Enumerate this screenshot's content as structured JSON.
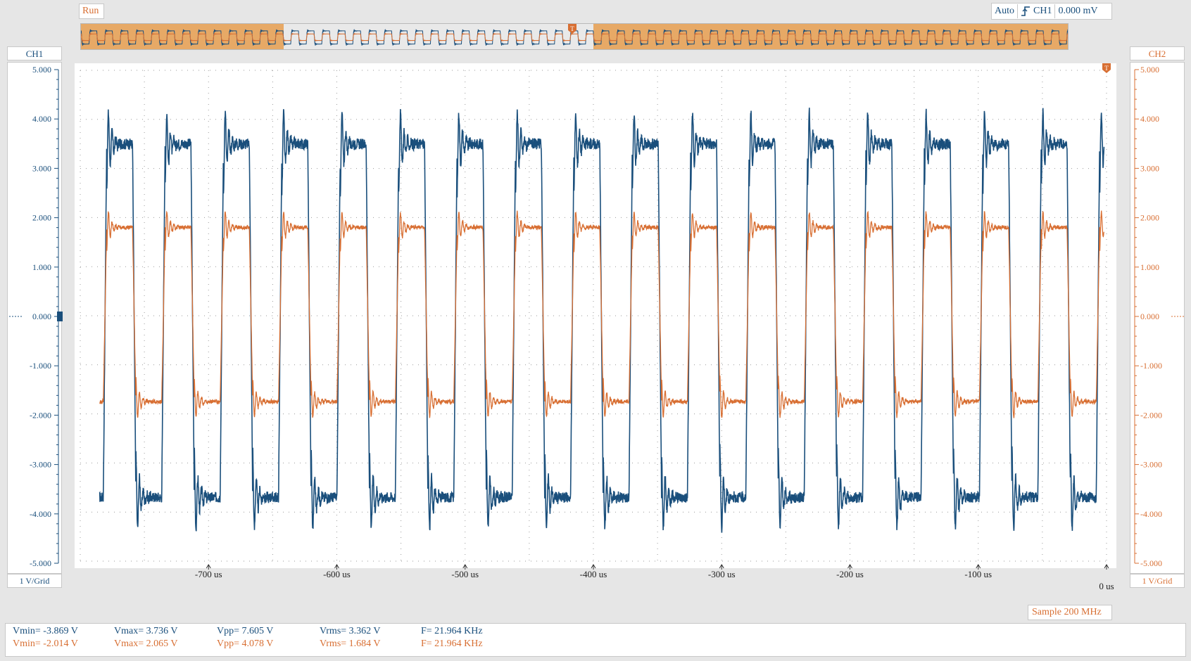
{
  "status": {
    "run": "Run"
  },
  "trigger": {
    "mode": "Auto",
    "source": "CH1",
    "level": "0.000 mV",
    "marker": "T"
  },
  "channels": {
    "ch1": {
      "label": "CH1",
      "scale": "1 V/Grid",
      "color": "#1a4f7c"
    },
    "ch2": {
      "label": "CH2",
      "scale": "1 V/Grid",
      "color": "#d86f33"
    }
  },
  "sample": "Sample 200 MHz",
  "measurements": [
    {
      "vmin": "Vmin= -3.869 V",
      "vmax": "Vmax= 3.736 V",
      "vpp": "Vpp= 7.605 V",
      "vrms": "Vrms= 3.362 V",
      "freq": "F= 21.964 KHz",
      "color": "#1a4f7c"
    },
    {
      "vmin": "Vmin= -2.014 V",
      "vmax": "Vmax= 2.065 V",
      "vpp": "Vpp= 4.078 V",
      "vrms": "Vrms= 1.684 V",
      "freq": "F= 21.964 KHz",
      "color": "#d86f33"
    }
  ],
  "chart_data": {
    "type": "line",
    "ylim": [
      -5,
      5
    ],
    "xlim": [
      -800,
      0
    ],
    "y_ticks": [
      "5.000",
      "4.000",
      "3.000",
      "2.000",
      "1.000",
      "0.000",
      "-1.000",
      "-2.000",
      "-3.000",
      "-4.000",
      "-5.000"
    ],
    "x_ticks": [
      "-700 us",
      "-600 us",
      "-500 us",
      "-400 us",
      "-300 us",
      "-200 us",
      "-100 us",
      "0 us"
    ],
    "x_tick_values": [
      -700,
      -600,
      -500,
      -400,
      -300,
      -200,
      -100,
      0
    ],
    "series": [
      {
        "high": 3.5,
        "low": -3.7,
        "color": "#1a4f7c"
      },
      {
        "high": 1.8,
        "low": -1.75,
        "color": "#d86f33"
      }
    ],
    "period_us": 45.53,
    "grid": true
  }
}
